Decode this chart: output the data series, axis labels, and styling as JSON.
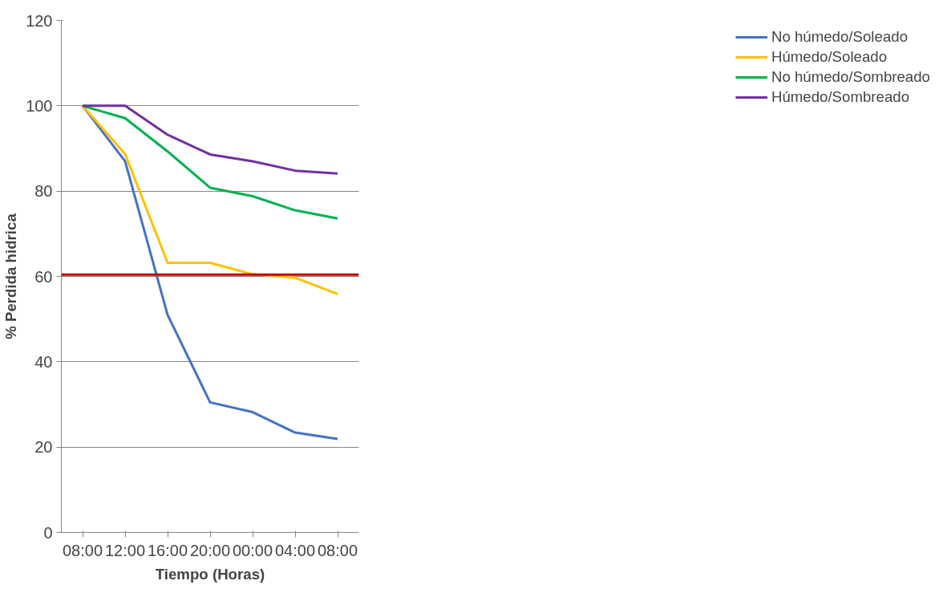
{
  "chart_data": {
    "type": "line",
    "xlabel": "Tiempo (Horas)",
    "ylabel": "% Perdida hidrica",
    "categories": [
      "08:00",
      "12:00",
      "16:00",
      "20:00",
      "00:00",
      "04:00",
      "08:00"
    ],
    "series": [
      {
        "name": "No húmedo/Soleado",
        "color": "#4472c4",
        "values": [
          100,
          87,
          51,
          30.5,
          28.2,
          23.4,
          21.9
        ]
      },
      {
        "name": "Húmedo/Soleado",
        "color": "#ffc000",
        "values": [
          100,
          88.7,
          63.2,
          63.2,
          60.5,
          59.7,
          55.9
        ]
      },
      {
        "name": "No húmedo/Sombreado",
        "color": "#00b050",
        "values": [
          100,
          97.1,
          89.3,
          80.8,
          78.8,
          75.5,
          73.6
        ]
      },
      {
        "name": "Húmedo/Sombreado",
        "color": "#7030a0",
        "values": [
          100,
          100,
          93.2,
          88.6,
          87,
          84.8,
          84.1
        ]
      }
    ],
    "ref_lines": [
      {
        "axis": "y",
        "value": 60.4,
        "color": "#c00000"
      }
    ],
    "ylim": [
      0,
      120
    ],
    "yticks": [
      0,
      20,
      40,
      60,
      80,
      100,
      120
    ],
    "grid": "y",
    "legend": "right",
    "marker": "none",
    "line_style": "solid"
  }
}
